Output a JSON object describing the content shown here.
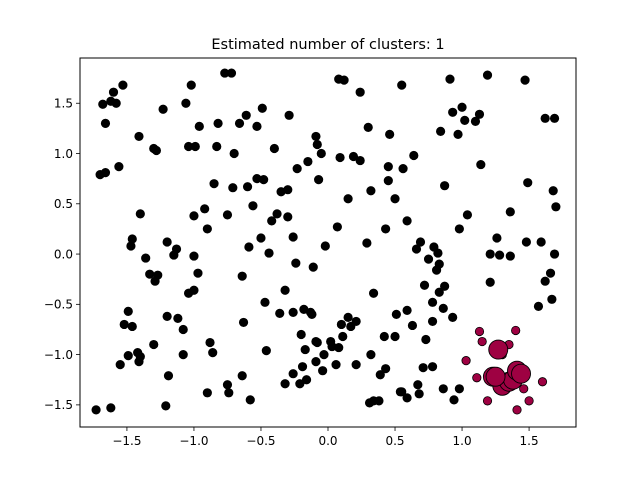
{
  "chart_data": {
    "type": "scatter",
    "title": "Estimated number of clusters: 1",
    "xlabel": "",
    "ylabel": "",
    "xlim": [
      -1.85,
      1.85
    ],
    "ylim": [
      -1.72,
      1.95
    ],
    "xticks": [
      -1.5,
      -1.0,
      -0.5,
      0.0,
      0.5,
      1.0,
      1.5
    ],
    "xtick_labels": [
      "−1.5",
      "−1.0",
      "−0.5",
      "0.0",
      "0.5",
      "1.0",
      "1.5"
    ],
    "yticks": [
      -1.5,
      -1.0,
      -0.5,
      0.0,
      0.5,
      1.0,
      1.5
    ],
    "ytick_labels": [
      "−1.5",
      "−1.0",
      "−0.5",
      "0.0",
      "0.5",
      "1.0",
      "1.5"
    ],
    "grid": false,
    "colors": {
      "noise": "#000000",
      "cluster": "#9e0142",
      "edge": "#000000"
    },
    "noise_points": [
      [
        -1.68,
        1.49
      ],
      [
        -1.62,
        1.52
      ],
      [
        -1.6,
        1.61
      ],
      [
        -1.58,
        1.5
      ],
      [
        -1.53,
        1.68
      ],
      [
        -1.66,
        1.3
      ],
      [
        -1.7,
        0.79
      ],
      [
        -1.66,
        0.81
      ],
      [
        -1.56,
        0.87
      ],
      [
        -1.41,
        1.17
      ],
      [
        -1.3,
        1.05
      ],
      [
        -1.28,
        1.03
      ],
      [
        -1.23,
        1.44
      ],
      [
        -1.06,
        1.5
      ],
      [
        -1.02,
        1.68
      ],
      [
        -1.04,
        1.07
      ],
      [
        -0.99,
        1.07
      ],
      [
        -0.96,
        1.27
      ],
      [
        -0.82,
        1.3
      ],
      [
        -0.77,
        1.8
      ],
      [
        -0.72,
        1.8
      ],
      [
        -0.83,
        1.07
      ],
      [
        -0.7,
        1.0
      ],
      [
        -0.66,
        1.3
      ],
      [
        -0.61,
        1.38
      ],
      [
        -0.53,
        1.27
      ],
      [
        -0.49,
        1.45
      ],
      [
        -0.4,
        1.05
      ],
      [
        -0.29,
        1.38
      ],
      [
        -0.09,
        1.17
      ],
      [
        -0.08,
        1.09
      ],
      [
        -0.05,
        1.0
      ],
      [
        -0.15,
        0.92
      ],
      [
        -0.23,
        0.85
      ],
      [
        -0.07,
        0.74
      ],
      [
        0.08,
        1.74
      ],
      [
        0.12,
        1.73
      ],
      [
        0.24,
        1.61
      ],
      [
        0.3,
        1.26
      ],
      [
        0.19,
        0.97
      ],
      [
        0.09,
        0.96
      ],
      [
        0.24,
        0.93
      ],
      [
        0.46,
        1.19
      ],
      [
        0.55,
        1.68
      ],
      [
        0.64,
        0.98
      ],
      [
        0.56,
        0.85
      ],
      [
        0.45,
        0.87
      ],
      [
        0.32,
        0.63
      ],
      [
        0.45,
        0.73
      ],
      [
        0.5,
        0.55
      ],
      [
        0.84,
        1.22
      ],
      [
        0.91,
        1.74
      ],
      [
        0.93,
        1.41
      ],
      [
        0.97,
        1.19
      ],
      [
        1.0,
        1.46
      ],
      [
        1.02,
        1.33
      ],
      [
        1.1,
        1.32
      ],
      [
        1.13,
        1.39
      ],
      [
        1.19,
        1.78
      ],
      [
        1.14,
        0.89
      ],
      [
        1.47,
        1.73
      ],
      [
        1.49,
        0.71
      ],
      [
        1.62,
        1.35
      ],
      [
        1.69,
        1.35
      ],
      [
        1.68,
        0.63
      ],
      [
        1.7,
        0.47
      ],
      [
        1.36,
        0.42
      ],
      [
        1.04,
        0.39
      ],
      [
        0.87,
        0.68
      ],
      [
        0.98,
        0.25
      ],
      [
        1.26,
        0.16
      ],
      [
        1.21,
        0.0
      ],
      [
        1.28,
        -0.01
      ],
      [
        1.36,
        -0.02
      ],
      [
        1.48,
        0.12
      ],
      [
        1.59,
        0.12
      ],
      [
        1.66,
        -0.19
      ],
      [
        1.69,
        0.0
      ],
      [
        1.62,
        -0.27
      ],
      [
        1.67,
        -0.45
      ],
      [
        1.57,
        -0.52
      ],
      [
        1.21,
        -0.28
      ],
      [
        -1.4,
        0.4
      ],
      [
        -1.46,
        0.15
      ],
      [
        -1.47,
        0.08
      ],
      [
        -1.36,
        -0.04
      ],
      [
        -1.33,
        -0.2
      ],
      [
        -1.29,
        -0.27
      ],
      [
        -1.27,
        -0.21
      ],
      [
        -1.2,
        0.12
      ],
      [
        -1.13,
        0.05
      ],
      [
        -1.15,
        -0.01
      ],
      [
        -1.12,
        -0.64
      ],
      [
        -1.08,
        -0.75
      ],
      [
        -1.2,
        -0.62
      ],
      [
        -1.49,
        -0.57
      ],
      [
        -1.52,
        -0.7
      ],
      [
        -1.46,
        -0.72
      ],
      [
        -1.49,
        -1.01
      ],
      [
        -1.42,
        -0.98
      ],
      [
        -1.4,
        -1.02
      ],
      [
        -1.41,
        -1.07
      ],
      [
        -1.55,
        -1.1
      ],
      [
        -1.62,
        -1.53
      ],
      [
        -1.73,
        -1.55
      ],
      [
        -1.21,
        -1.51
      ],
      [
        -1.19,
        -1.21
      ],
      [
        -1.08,
        -1.0
      ],
      [
        -1.04,
        -0.39
      ],
      [
        -1.0,
        -0.02
      ],
      [
        -0.97,
        -0.19
      ],
      [
        -1.0,
        0.38
      ],
      [
        -0.9,
        0.25
      ],
      [
        -0.92,
        0.45
      ],
      [
        -0.85,
        0.7
      ],
      [
        -0.75,
        0.39
      ],
      [
        -0.71,
        0.66
      ],
      [
        -0.6,
        0.67
      ],
      [
        -0.56,
        0.48
      ],
      [
        -0.53,
        0.75
      ],
      [
        -0.48,
        0.74
      ],
      [
        -0.42,
        0.33
      ],
      [
        -0.38,
        0.4
      ],
      [
        -0.35,
        0.62
      ],
      [
        -0.3,
        0.37
      ],
      [
        -0.26,
        0.17
      ],
      [
        -0.3,
        0.64
      ],
      [
        -0.5,
        0.16
      ],
      [
        -0.44,
        0.01
      ],
      [
        -0.59,
        0.07
      ],
      [
        -0.64,
        -0.22
      ],
      [
        -0.24,
        -0.09
      ],
      [
        -0.11,
        -0.13
      ],
      [
        -0.02,
        0.08
      ],
      [
        0.07,
        0.27
      ],
      [
        0.15,
        0.55
      ],
      [
        0.29,
        0.11
      ],
      [
        0.43,
        0.25
      ],
      [
        0.59,
        0.33
      ],
      [
        0.69,
        0.12
      ],
      [
        0.66,
        0.05
      ],
      [
        0.79,
        0.07
      ],
      [
        0.82,
        0.01
      ],
      [
        0.75,
        -0.05
      ],
      [
        0.81,
        -0.16
      ],
      [
        0.83,
        -0.1
      ],
      [
        0.72,
        -0.31
      ],
      [
        0.87,
        -0.32
      ],
      [
        0.83,
        -0.38
      ],
      [
        0.78,
        -0.48
      ],
      [
        0.59,
        -0.56
      ],
      [
        0.51,
        -0.6
      ],
      [
        0.63,
        -0.71
      ],
      [
        0.78,
        -0.67
      ],
      [
        0.86,
        -0.54
      ],
      [
        0.93,
        -0.63
      ],
      [
        0.73,
        -0.85
      ],
      [
        0.78,
        -1.12
      ],
      [
        0.71,
        -1.13
      ],
      [
        0.67,
        -1.3
      ],
      [
        0.54,
        -1.37
      ],
      [
        0.68,
        -1.39
      ],
      [
        0.59,
        -1.43
      ],
      [
        0.86,
        -1.34
      ],
      [
        0.98,
        -1.34
      ],
      [
        0.94,
        -1.45
      ],
      [
        0.38,
        -1.46
      ],
      [
        0.34,
        -1.46
      ],
      [
        0.31,
        -1.48
      ],
      [
        0.39,
        -1.2
      ],
      [
        0.43,
        -1.14
      ],
      [
        0.32,
        -1.0
      ],
      [
        0.42,
        -0.82
      ],
      [
        0.5,
        -0.82
      ],
      [
        0.34,
        -0.39
      ],
      [
        0.21,
        -0.67
      ],
      [
        0.17,
        -0.72
      ],
      [
        0.11,
        -0.82
      ],
      [
        0.02,
        -0.87
      ],
      [
        0.03,
        -0.92
      ],
      [
        -0.09,
        -0.87
      ],
      [
        -0.09,
        -1.07
      ],
      [
        -0.19,
        -1.12
      ],
      [
        -0.26,
        -1.19
      ],
      [
        -0.32,
        -1.29
      ],
      [
        -0.21,
        -1.29
      ],
      [
        -0.16,
        -1.25
      ],
      [
        -0.04,
        -1.16
      ],
      [
        0.06,
        -1.1
      ],
      [
        0.21,
        -1.1
      ],
      [
        -0.17,
        -0.95
      ],
      [
        -0.13,
        -0.58
      ],
      [
        -0.18,
        -0.55
      ],
      [
        -0.26,
        -0.58
      ],
      [
        -0.36,
        -0.59
      ],
      [
        -0.47,
        -0.48
      ],
      [
        -0.46,
        -0.96
      ],
      [
        -0.63,
        -0.68
      ],
      [
        -0.64,
        -1.21
      ],
      [
        -0.75,
        -1.3
      ],
      [
        -0.74,
        -1.38
      ],
      [
        -0.88,
        -0.88
      ],
      [
        -0.86,
        -0.98
      ],
      [
        -0.9,
        -1.38
      ],
      [
        -0.58,
        -1.45
      ],
      [
        -0.12,
        -0.6
      ],
      [
        0.08,
        -0.93
      ],
      [
        -0.03,
        -1.0
      ],
      [
        -0.08,
        -0.88
      ],
      [
        -1.0,
        -0.36
      ],
      [
        0.55,
        -1.37
      ],
      [
        -0.32,
        -0.36
      ],
      [
        -0.2,
        -0.8
      ],
      [
        0.1,
        -0.7
      ],
      [
        0.15,
        -0.63
      ],
      [
        -1.3,
        -0.9
      ]
    ],
    "cluster_core_points": [
      [
        1.27,
        -0.95
      ],
      [
        1.3,
        -1.31
      ],
      [
        1.35,
        -1.27
      ],
      [
        1.38,
        -1.25
      ],
      [
        1.41,
        -1.16
      ],
      [
        1.44,
        -1.19
      ],
      [
        1.23,
        -1.22
      ],
      [
        1.25,
        -1.22
      ]
    ],
    "cluster_border_points": [
      [
        1.13,
        -0.77
      ],
      [
        1.15,
        -0.87
      ],
      [
        1.3,
        -1.0
      ],
      [
        1.4,
        -0.76
      ],
      [
        1.35,
        -0.9
      ],
      [
        1.03,
        -1.06
      ],
      [
        1.11,
        -1.23
      ],
      [
        1.19,
        -1.46
      ],
      [
        1.41,
        -1.55
      ],
      [
        1.5,
        -1.46
      ],
      [
        1.6,
        -1.27
      ],
      [
        1.46,
        -1.34
      ]
    ]
  }
}
